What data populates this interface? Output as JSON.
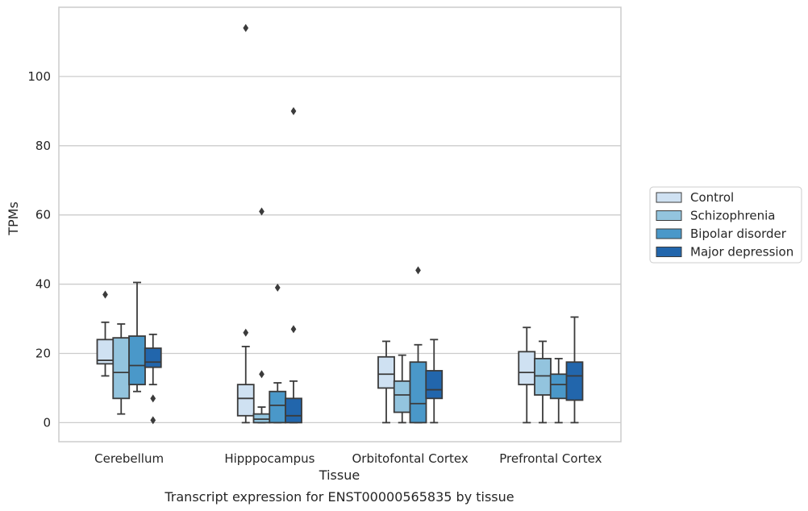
{
  "chart_data": {
    "type": "box",
    "title": "",
    "caption": "Transcript expression for ENST00000565835 by tissue",
    "xlabel": "Tissue",
    "ylabel": "TPMs",
    "ylim": [
      -5.5,
      120
    ],
    "yticks": [
      0,
      20,
      40,
      60,
      80,
      100
    ],
    "grid": "horizontal",
    "legend_position": "right",
    "categories": [
      "Cerebellum",
      "Hipppocampus",
      "Orbitofontal Cortex",
      "Prefrontal Cortex"
    ],
    "series": [
      {
        "name": "Control",
        "color": "#cfe1f2",
        "boxes": [
          {
            "whisker_low": 13.5,
            "q1": 17,
            "median": 18,
            "q3": 24,
            "whisker_high": 29,
            "outliers": [
              37
            ]
          },
          {
            "whisker_low": 0,
            "q1": 2,
            "median": 7,
            "q3": 11,
            "whisker_high": 22,
            "outliers": [
              26,
              114
            ]
          },
          {
            "whisker_low": 0,
            "q1": 10,
            "median": 14,
            "q3": 19,
            "whisker_high": 23.5,
            "outliers": []
          },
          {
            "whisker_low": 0,
            "q1": 11,
            "median": 14.5,
            "q3": 20.5,
            "whisker_high": 27.5,
            "outliers": []
          }
        ]
      },
      {
        "name": "Schizophrenia",
        "color": "#93c4de",
        "boxes": [
          {
            "whisker_low": 2.5,
            "q1": 7,
            "median": 14.5,
            "q3": 24.5,
            "whisker_high": 28.5,
            "outliers": []
          },
          {
            "whisker_low": 0,
            "q1": 0,
            "median": 1,
            "q3": 2.5,
            "whisker_high": 4.5,
            "outliers": [
              14,
              61
            ]
          },
          {
            "whisker_low": 0,
            "q1": 3,
            "median": 8,
            "q3": 12,
            "whisker_high": 19.5,
            "outliers": []
          },
          {
            "whisker_low": 0,
            "q1": 8,
            "median": 13.5,
            "q3": 18.5,
            "whisker_high": 23.5,
            "outliers": []
          }
        ]
      },
      {
        "name": "Bipolar disorder",
        "color": "#4a98c9",
        "boxes": [
          {
            "whisker_low": 9,
            "q1": 11,
            "median": 16.5,
            "q3": 25,
            "whisker_high": 40.5,
            "outliers": []
          },
          {
            "whisker_low": 0,
            "q1": 0,
            "median": 5,
            "q3": 9,
            "whisker_high": 11.5,
            "outliers": [
              39
            ]
          },
          {
            "whisker_low": 0,
            "q1": 0,
            "median": 5.5,
            "q3": 17.5,
            "whisker_high": 22.5,
            "outliers": [
              44
            ]
          },
          {
            "whisker_low": 0,
            "q1": 7,
            "median": 11,
            "q3": 14,
            "whisker_high": 18.5,
            "outliers": []
          }
        ]
      },
      {
        "name": "Major depression",
        "color": "#2266ac",
        "boxes": [
          {
            "whisker_low": 11,
            "q1": 16,
            "median": 17.5,
            "q3": 21.5,
            "whisker_high": 25.5,
            "outliers": [
              7,
              0.7
            ]
          },
          {
            "whisker_low": 0,
            "q1": 0,
            "median": 2,
            "q3": 7,
            "whisker_high": 12,
            "outliers": [
              27,
              90
            ]
          },
          {
            "whisker_low": 0,
            "q1": 7,
            "median": 9.5,
            "q3": 15,
            "whisker_high": 24,
            "outliers": []
          },
          {
            "whisker_low": 0,
            "q1": 6.5,
            "median": 13.5,
            "q3": 17.5,
            "whisker_high": 30.5,
            "outliers": []
          }
        ]
      }
    ]
  }
}
